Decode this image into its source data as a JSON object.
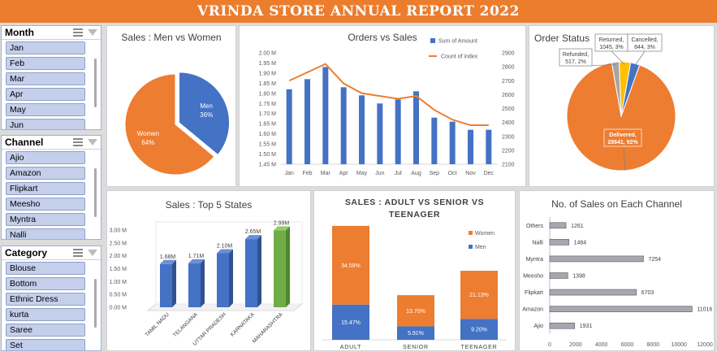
{
  "banner": "VRINDA STORE ANNUAL REPORT 2022",
  "slicers": {
    "month": {
      "title": "Month",
      "items": [
        "Jan",
        "Feb",
        "Mar",
        "Apr",
        "May",
        "Jun"
      ]
    },
    "channel": {
      "title": "Channel",
      "items": [
        "Ajio",
        "Amazon",
        "Flipkart",
        "Meesho",
        "Myntra",
        "Nalli"
      ]
    },
    "category": {
      "title": "Category",
      "items": [
        "Blouse",
        "Bottom",
        "Ethnic Dress",
        "kurta",
        "Saree",
        "Set"
      ]
    }
  },
  "colors": {
    "orange": "#ed7d31",
    "blue": "#4472c4",
    "green": "#70ad47",
    "gray": "#a5a5a5",
    "yellow": "#ffc000",
    "banner": "#ec7d2d"
  },
  "chart_data": [
    {
      "id": "men_women",
      "type": "pie",
      "title": "Sales : Men vs Women",
      "slices": [
        {
          "label": "Men",
          "value": 36,
          "text": "36%",
          "color": "#4472c4"
        },
        {
          "label": "Women",
          "value": 64,
          "text": "64%",
          "color": "#ed7d31"
        }
      ]
    },
    {
      "id": "orders_sales",
      "type": "bar",
      "title": "Orders vs Sales",
      "categories": [
        "Jan",
        "Feb",
        "Mar",
        "Apr",
        "May",
        "Jun",
        "Jul",
        "Aug",
        "Sep",
        "Oct",
        "Nov",
        "Dec"
      ],
      "series": [
        {
          "name": "Sum of Amount",
          "type": "bar",
          "axis": "left",
          "values": [
            1.82,
            1.87,
            1.93,
            1.83,
            1.79,
            1.75,
            1.77,
            1.81,
            1.68,
            1.66,
            1.62,
            1.62
          ]
        },
        {
          "name": "Count of index",
          "type": "line",
          "axis": "right",
          "values": [
            2700,
            2760,
            2820,
            2680,
            2610,
            2590,
            2570,
            2590,
            2490,
            2420,
            2380,
            2380
          ]
        }
      ],
      "y_left": {
        "min": 1.45,
        "max": 2.0,
        "ticks": [
          "1.45 M",
          "1.50 M",
          "1.55 M",
          "1.60 M",
          "1.65 M",
          "1.70 M",
          "1.75 M",
          "1.80 M",
          "1.85 M",
          "1.90 M",
          "1.95 M",
          "2.00 M"
        ]
      },
      "y_right": {
        "min": 2100,
        "max": 2900,
        "ticks": [
          "2100",
          "2200",
          "2300",
          "2400",
          "2500",
          "2600",
          "2700",
          "2800",
          "2900"
        ]
      }
    },
    {
      "id": "order_status",
      "type": "pie",
      "title": "Order Status",
      "slices": [
        {
          "label": "Delivered",
          "value": 28641,
          "pct": "92%",
          "color": "#ed7d31"
        },
        {
          "label": "Refunded",
          "value": 517,
          "pct": "2%",
          "color": "#a5a5a5"
        },
        {
          "label": "Returned",
          "value": 1045,
          "pct": "3%",
          "color": "#ffc000"
        },
        {
          "label": "Cancelled",
          "value": 844,
          "pct": "3%",
          "color": "#4472c4"
        }
      ],
      "labels": {
        "delivered": [
          "Delivered,",
          "28641, 92%"
        ],
        "refunded": [
          "Refunded,",
          "517, 2%"
        ],
        "returned": [
          "Returned,",
          "1045, 3%"
        ],
        "cancelled": [
          "Cancelled,",
          "844, 3%"
        ]
      }
    },
    {
      "id": "top_states",
      "type": "bar",
      "title": "Sales : Top 5 States",
      "categories": [
        "TAMIL NADU",
        "TELANGANA",
        "UTTAR PRADESH",
        "KARNATAKA",
        "MAHARASHTRA"
      ],
      "values": [
        1.68,
        1.71,
        2.1,
        2.65,
        2.99
      ],
      "value_labels": [
        "1.68M",
        "1.71M",
        "2.10M",
        "2.65M",
        "2.99M"
      ],
      "ylim": [
        0,
        3.0
      ],
      "y_ticks": [
        "0.00 M",
        "0.50 M",
        "1.00 M",
        "1.50 M",
        "2.00 M",
        "2.50 M",
        "3.00 M"
      ]
    },
    {
      "id": "age_group",
      "type": "bar",
      "title": "SALES : ADULT VS SENIOR VS TEENAGER",
      "categories": [
        "ADULT",
        "SENIOR",
        "TEENAGER"
      ],
      "series": [
        {
          "name": "Men",
          "values": [
            15.47,
            5.91,
            9.2
          ],
          "labels": [
            "15.47%",
            "5.91%",
            "9.20%"
          ],
          "color": "#4472c4"
        },
        {
          "name": "Women",
          "values": [
            34.59,
            13.7,
            21.13
          ],
          "labels": [
            "34.59%",
            "13.70%",
            "21.13%"
          ],
          "color": "#ed7d31"
        }
      ]
    },
    {
      "id": "channels",
      "type": "bar",
      "title": "No. of Sales on Each Channel",
      "categories": [
        "Others",
        "Nalli",
        "Myntra",
        "Meesho",
        "Flipkart",
        "Amazon",
        "Ajio"
      ],
      "values": [
        1261,
        1484,
        7254,
        1398,
        6703,
        11016,
        1931
      ],
      "value_labels": [
        "1261",
        "1484",
        "7254",
        "1398",
        "6703",
        "11016",
        "1931"
      ],
      "xlim": [
        0,
        12000
      ],
      "x_ticks": [
        "0",
        "2000",
        "4000",
        "6000",
        "8000",
        "10000",
        "12000"
      ]
    }
  ]
}
